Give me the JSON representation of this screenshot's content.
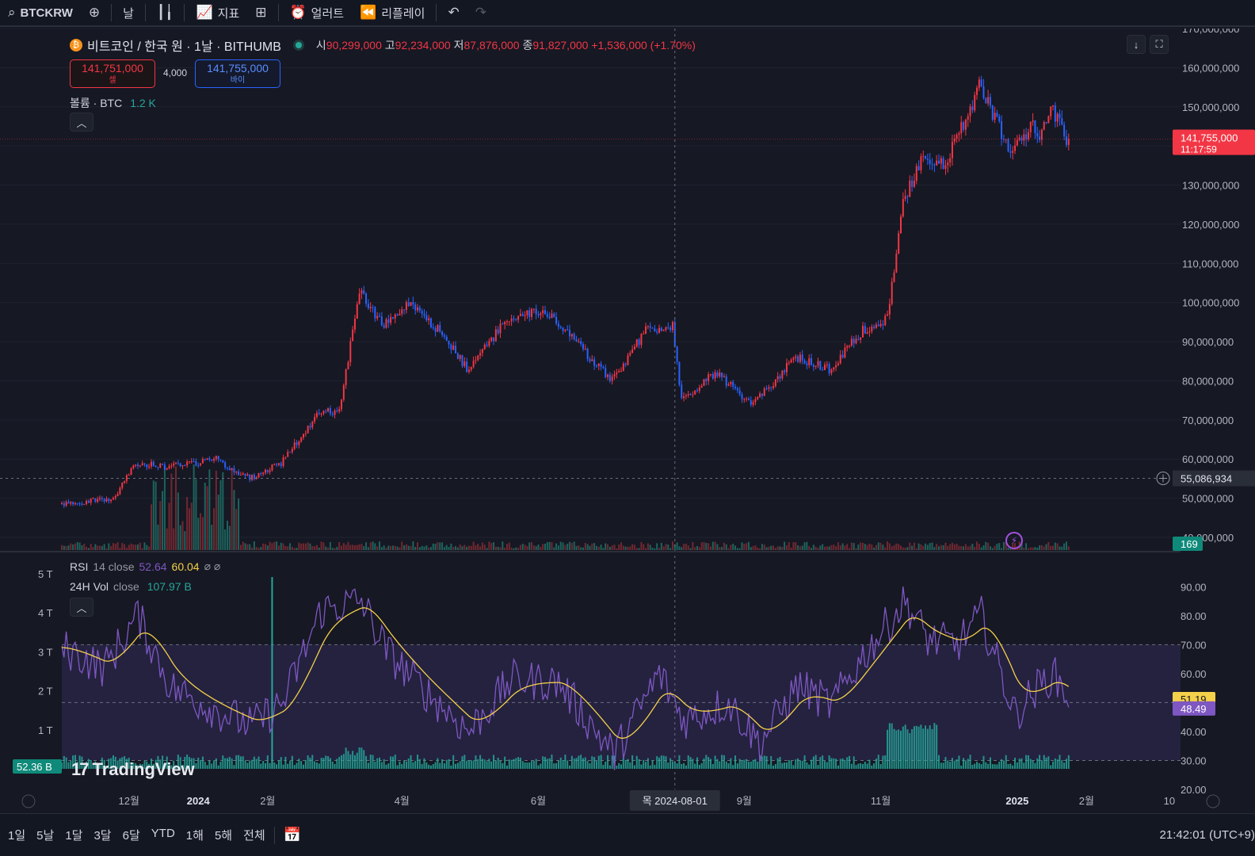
{
  "toolbar": {
    "symbol": "BTCKRW",
    "interval": "날",
    "indicators": "지표",
    "alerts": "얼러트",
    "replay": "리플레이"
  },
  "legend": {
    "title": "비트코인 / 한국 원 · 1날 · BITHUMB",
    "o_label": "시",
    "o": "90,299,000",
    "h_label": "고",
    "h": "92,234,000",
    "l_label": "저",
    "l": "87,876,000",
    "c_label": "종",
    "c": "91,827,000",
    "change": "+1,536,000 (+1.70%)",
    "sell_price": "141,751,000",
    "sell_label": "셀",
    "spread": "4,000",
    "buy_price": "141,755,000",
    "buy_label": "바이",
    "volume_label": "볼륨 · BTC",
    "volume_value": "1.2 K"
  },
  "rsi_legend": {
    "label": "RSI",
    "params": "14 close",
    "v1": "52.64",
    "v2": "60.04",
    "extra": "⌀ ⌀",
    "vol_label": "24H Vol",
    "vol_params": "close",
    "vol_value": "107.97 B"
  },
  "price_axis": {
    "ticks": [
      "170,000,000",
      "160,000,000",
      "150,000,000",
      "140,000,000",
      "130,000,000",
      "120,000,000",
      "110,000,000",
      "100,000,000",
      "90,000,000",
      "80,000,000",
      "70,000,000",
      "60,000,000",
      "50,000,000",
      "40,000,000"
    ],
    "last_price": "141,755,000",
    "countdown": "11:17:59",
    "crosshair_price": "55,086,934",
    "volume_badge": "169"
  },
  "rsi_axis": {
    "ticks": [
      "90.00",
      "80.00",
      "70.00",
      "60.00",
      "50.00",
      "40.00",
      "30.00",
      "20.00"
    ],
    "rsi_value": "51.19",
    "ma_value": "48.49"
  },
  "vol_axis": {
    "ticks": [
      "5 T",
      "4 T",
      "3 T",
      "2 T",
      "1 T"
    ],
    "badge": "52.36 B"
  },
  "time_axis": {
    "labels": [
      "12월",
      "2024",
      "2월",
      "4월",
      "6월",
      "9월",
      "11월",
      "2025",
      "2월",
      "10"
    ],
    "crosshair": "목 2024-08-01"
  },
  "brand": "TradingView",
  "bottom": {
    "ranges": [
      "1일",
      "5날",
      "1달",
      "3달",
      "6달",
      "YTD",
      "1해",
      "5해",
      "전체"
    ],
    "clock": "21:42:01 (UTC+9)"
  },
  "colors": {
    "up": "#f23645",
    "down": "#2962ff",
    "rsi": "#7e57c2",
    "rsi_ma": "#f5d04a",
    "volume": "#26a69a",
    "background": "#161823"
  },
  "chart_data": {
    "type": "candlestick",
    "title": "비트코인 / 한국 원 · 1날 · BITHUMB",
    "x_range": [
      "2023-11-01",
      "2025-03-15"
    ],
    "price_range": [
      40000000,
      170000000
    ],
    "price_anchors": [
      [
        "2023-11-01",
        48500000
      ],
      [
        "2023-11-25",
        50000000
      ],
      [
        "2023-12-05",
        59000000
      ],
      [
        "2023-12-20",
        58000000
      ],
      [
        "2024-01-10",
        60000000
      ],
      [
        "2024-01-25",
        55000000
      ],
      [
        "2024-02-08",
        59000000
      ],
      [
        "2024-02-25",
        72000000
      ],
      [
        "2024-03-05",
        72000000
      ],
      [
        "2024-03-14",
        103000000
      ],
      [
        "2024-03-25",
        94000000
      ],
      [
        "2024-04-05",
        100000000
      ],
      [
        "2024-04-20",
        92000000
      ],
      [
        "2024-05-01",
        83000000
      ],
      [
        "2024-05-20",
        96000000
      ],
      [
        "2024-06-05",
        98000000
      ],
      [
        "2024-06-20",
        89000000
      ],
      [
        "2024-07-05",
        80000000
      ],
      [
        "2024-07-20",
        93000000
      ],
      [
        "2024-08-01",
        94000000
      ],
      [
        "2024-08-05",
        75000000
      ],
      [
        "2024-08-20",
        82000000
      ],
      [
        "2024-09-06",
        74000000
      ],
      [
        "2024-09-25",
        86000000
      ],
      [
        "2024-10-10",
        83000000
      ],
      [
        "2024-10-25",
        93000000
      ],
      [
        "2024-11-05",
        96000000
      ],
      [
        "2024-11-12",
        126000000
      ],
      [
        "2024-11-20",
        136000000
      ],
      [
        "2024-12-01",
        136000000
      ],
      [
        "2024-12-16",
        155000000
      ],
      [
        "2024-12-31",
        138000000
      ],
      [
        "2025-01-08",
        145000000
      ],
      [
        "2025-01-13",
        143000000
      ],
      [
        "2025-01-17",
        150000000
      ],
      [
        "2025-01-24",
        141755000
      ]
    ],
    "rsi_range": [
      20,
      95
    ],
    "rsi_bands": [
      30,
      70
    ],
    "rsi_anchors": [
      [
        "2023-11-01",
        69
      ],
      [
        "2023-11-20",
        62
      ],
      [
        "2023-12-05",
        80
      ],
      [
        "2023-12-20",
        55
      ],
      [
        "2024-01-10",
        47
      ],
      [
        "2024-01-25",
        42
      ],
      [
        "2024-02-08",
        50
      ],
      [
        "2024-02-25",
        82
      ],
      [
        "2024-03-14",
        85
      ],
      [
        "2024-03-25",
        68
      ],
      [
        "2024-04-10",
        55
      ],
      [
        "2024-05-01",
        40
      ],
      [
        "2024-05-20",
        58
      ],
      [
        "2024-06-10",
        57
      ],
      [
        "2024-07-05",
        32
      ],
      [
        "2024-07-25",
        60
      ],
      [
        "2024-08-05",
        44
      ],
      [
        "2024-08-25",
        50
      ],
      [
        "2024-09-08",
        36
      ],
      [
        "2024-09-25",
        56
      ],
      [
        "2024-10-10",
        49
      ],
      [
        "2024-10-25",
        67
      ],
      [
        "2024-11-12",
        85
      ],
      [
        "2024-11-22",
        72
      ],
      [
        "2024-12-05",
        70
      ],
      [
        "2024-12-16",
        80
      ],
      [
        "2024-12-31",
        46
      ],
      [
        "2025-01-10",
        55
      ],
      [
        "2025-01-17",
        60
      ],
      [
        "2025-01-24",
        52
      ]
    ],
    "volume_range_trillion": [
      0,
      5
    ]
  }
}
